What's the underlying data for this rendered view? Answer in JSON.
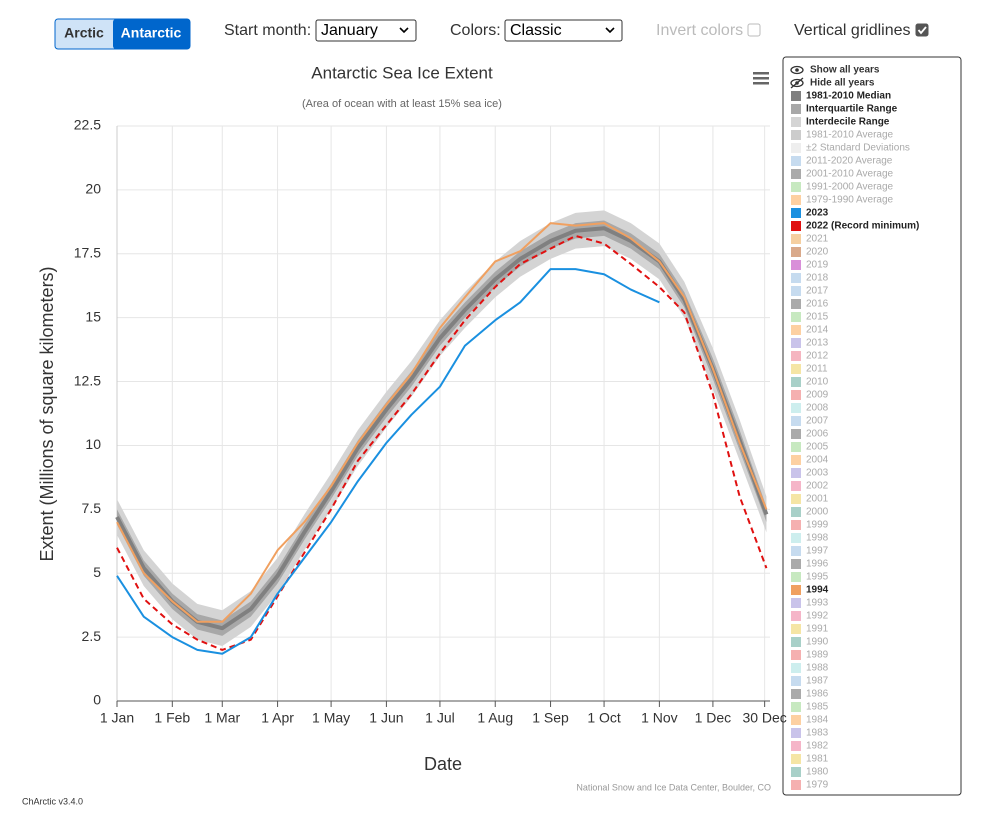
{
  "controls": {
    "arctic": "Arctic",
    "antarctic": "Antarctic",
    "start_month_label": "Start month:",
    "start_month": "January",
    "colors_label": "Colors:",
    "colors": "Classic",
    "invert_label": "Invert colors",
    "invert": false,
    "gridlines_label": "Vertical gridlines"
  },
  "chart_data": {
    "type": "line",
    "title": "Antarctic Sea Ice Extent",
    "subtitle": "(Area of ocean with at least 15% sea ice)",
    "x_label": "Date",
    "y_label": "Extent (Millions of square kilometers)",
    "source": "National Snow and Ice Data Center, Boulder, CO",
    "x": [
      0,
      15,
      31,
      45,
      59,
      75,
      90,
      105,
      120,
      135,
      151,
      165,
      181,
      195,
      212,
      226,
      243,
      257,
      273,
      288,
      304,
      318,
      334,
      349,
      364
    ],
    "xlim": [
      0,
      366
    ],
    "xticks": [
      {
        "value": 0,
        "label": "1 Jan"
      },
      {
        "value": 31,
        "label": "1 Feb"
      },
      {
        "value": 59,
        "label": "1 Mar"
      },
      {
        "value": 90,
        "label": "1 Apr"
      },
      {
        "value": 120,
        "label": "1 May"
      },
      {
        "value": 151,
        "label": "1 Jun"
      },
      {
        "value": 181,
        "label": "1 Jul"
      },
      {
        "value": 212,
        "label": "1 Aug"
      },
      {
        "value": 243,
        "label": "1 Sep"
      },
      {
        "value": 273,
        "label": "1 Oct"
      },
      {
        "value": 304,
        "label": "1 Nov"
      },
      {
        "value": 334,
        "label": "1 Dec"
      },
      {
        "value": 363,
        "label": "30 Dec"
      }
    ],
    "ylim": [
      0,
      22.5
    ],
    "yticks": [
      0,
      2.5,
      5,
      7.5,
      10,
      12.5,
      15,
      17.5,
      20,
      22.5
    ],
    "grid": true,
    "vertical_grid": true,
    "bands": [
      {
        "name": "Interdecile Range",
        "color": "#d4d4d4",
        "lower": [
          6.5,
          4.5,
          3.2,
          2.4,
          2.15,
          2.9,
          4.2,
          5.9,
          7.5,
          9.2,
          10.7,
          11.9,
          13.5,
          14.6,
          15.8,
          16.6,
          17.3,
          17.7,
          17.8,
          17.3,
          16.5,
          15.0,
          12.2,
          9.4,
          6.6
        ],
        "upper": [
          7.9,
          5.9,
          4.6,
          3.8,
          3.55,
          4.3,
          5.6,
          7.3,
          8.9,
          10.6,
          12.1,
          13.3,
          14.9,
          16.0,
          17.2,
          18.0,
          18.7,
          19.1,
          19.2,
          18.7,
          17.9,
          16.4,
          13.8,
          11.0,
          8.0
        ]
      },
      {
        "name": "Interquartile Range",
        "color": "#a8a8a8",
        "lower": [
          6.9,
          4.9,
          3.6,
          2.8,
          2.55,
          3.3,
          4.6,
          6.3,
          7.9,
          9.6,
          11.1,
          12.3,
          13.9,
          15.0,
          16.2,
          17.0,
          17.7,
          18.1,
          18.2,
          17.7,
          16.9,
          15.4,
          12.6,
          9.8,
          7.0
        ],
        "upper": [
          7.5,
          5.5,
          4.2,
          3.4,
          3.15,
          3.9,
          5.2,
          6.9,
          8.5,
          10.2,
          11.7,
          12.9,
          14.5,
          15.6,
          16.8,
          17.6,
          18.3,
          18.7,
          18.8,
          18.3,
          17.5,
          16.0,
          13.4,
          10.6,
          7.6
        ]
      }
    ],
    "series": [
      {
        "name": "1981-2010 Median",
        "color": "#808080",
        "width": 4,
        "dashed": false,
        "values": [
          7.2,
          5.2,
          3.9,
          3.1,
          2.85,
          3.6,
          4.9,
          6.6,
          8.2,
          9.9,
          11.4,
          12.6,
          14.2,
          15.3,
          16.5,
          17.3,
          18.0,
          18.4,
          18.5,
          18.0,
          17.2,
          15.7,
          13.0,
          10.2,
          7.3
        ]
      },
      {
        "name": "1994",
        "color": "#f0a060",
        "width": 2,
        "dashed": false,
        "values": [
          7.0,
          5.0,
          3.9,
          3.1,
          3.1,
          4.2,
          5.9,
          7.0,
          8.4,
          10.1,
          11.6,
          12.8,
          14.6,
          15.8,
          17.2,
          17.6,
          18.7,
          18.6,
          18.7,
          18.1,
          17.2,
          15.8,
          13.0,
          10.1,
          7.5
        ]
      },
      {
        "name": "2022 (Record minimum)",
        "color": "#e01010",
        "width": 2,
        "dashed": true,
        "values": [
          6.0,
          4.0,
          3.0,
          2.4,
          2.0,
          2.4,
          4.1,
          5.8,
          7.5,
          9.4,
          10.8,
          12.0,
          13.6,
          14.9,
          16.2,
          17.1,
          17.7,
          18.2,
          17.9,
          17.1,
          16.2,
          15.2,
          12.0,
          8.0,
          5.2
        ]
      },
      {
        "name": "2023",
        "color": "#1a90e0",
        "width": 2,
        "dashed": false,
        "values": [
          4.9,
          3.3,
          2.5,
          2.0,
          1.85,
          2.5,
          4.2,
          5.6,
          7.0,
          8.6,
          10.1,
          11.2,
          12.3,
          13.9,
          14.9,
          15.6,
          16.9,
          16.9,
          16.7,
          16.1,
          15.6,
          null,
          null,
          null,
          null
        ]
      }
    ],
    "legend_buttons": [
      "Show all years",
      "Hide all years"
    ],
    "legend": [
      {
        "name": "1981-2010 Median",
        "color": "#808080",
        "active": true
      },
      {
        "name": "Interquartile Range",
        "color": "#a8a8a8",
        "active": true
      },
      {
        "name": "Interdecile Range",
        "color": "#d4d4d4",
        "active": true
      },
      {
        "name": "1981-2010 Average",
        "color": "#cccccc",
        "active": false
      },
      {
        "name": "±2 Standard Deviations",
        "color": "#eeeeee",
        "active": false
      },
      {
        "name": "2011-2020 Average",
        "color": "#c6dbef",
        "active": false
      },
      {
        "name": "2001-2010 Average",
        "color": "#aaaaaa",
        "active": false
      },
      {
        "name": "1991-2000 Average",
        "color": "#c7e9c0",
        "active": false
      },
      {
        "name": "1979-1990 Average",
        "color": "#fdd0a2",
        "active": false
      },
      {
        "name": "2023",
        "color": "#1a90e0",
        "active": true
      },
      {
        "name": "2022 (Record minimum)",
        "color": "#e01010",
        "active": true
      },
      {
        "name": "2021",
        "color": "#f5cfa0",
        "active": false
      },
      {
        "name": "2020",
        "color": "#d9a98a",
        "active": false
      },
      {
        "name": "2019",
        "color": "#d98fd9",
        "active": false
      },
      {
        "name": "2018",
        "color": "#c6dbef",
        "active": false
      },
      {
        "name": "2017",
        "color": "#c6dbef",
        "active": false
      },
      {
        "name": "2016",
        "color": "#aaaaaa",
        "active": false
      },
      {
        "name": "2015",
        "color": "#c7e9c0",
        "active": false
      },
      {
        "name": "2014",
        "color": "#fdd0a2",
        "active": false
      },
      {
        "name": "2013",
        "color": "#c9c3ea",
        "active": false
      },
      {
        "name": "2012",
        "color": "#f5b5c0",
        "active": false
      },
      {
        "name": "2011",
        "color": "#f5e5a5",
        "active": false
      },
      {
        "name": "2010",
        "color": "#a8d0c8",
        "active": false
      },
      {
        "name": "2009",
        "color": "#f5b0b0",
        "active": false
      },
      {
        "name": "2008",
        "color": "#cdeeee",
        "active": false
      },
      {
        "name": "2007",
        "color": "#c6dbef",
        "active": false
      },
      {
        "name": "2006",
        "color": "#aaaaaa",
        "active": false
      },
      {
        "name": "2005",
        "color": "#c7e9c0",
        "active": false
      },
      {
        "name": "2004",
        "color": "#fdd0a2",
        "active": false
      },
      {
        "name": "2003",
        "color": "#c9c3ea",
        "active": false
      },
      {
        "name": "2002",
        "color": "#f5b5c8",
        "active": false
      },
      {
        "name": "2001",
        "color": "#f5e5a5",
        "active": false
      },
      {
        "name": "2000",
        "color": "#a8d0c8",
        "active": false
      },
      {
        "name": "1999",
        "color": "#f5b0b0",
        "active": false
      },
      {
        "name": "1998",
        "color": "#cdeeee",
        "active": false
      },
      {
        "name": "1997",
        "color": "#c6dbef",
        "active": false
      },
      {
        "name": "1996",
        "color": "#aaaaaa",
        "active": false
      },
      {
        "name": "1995",
        "color": "#c7e9c0",
        "active": false
      },
      {
        "name": "1994",
        "color": "#f0a060",
        "active": true
      },
      {
        "name": "1993",
        "color": "#c9c3ea",
        "active": false
      },
      {
        "name": "1992",
        "color": "#f5b5c8",
        "active": false
      },
      {
        "name": "1991",
        "color": "#f5e5a5",
        "active": false
      },
      {
        "name": "1990",
        "color": "#a8d0c8",
        "active": false
      },
      {
        "name": "1989",
        "color": "#f5b0b0",
        "active": false
      },
      {
        "name": "1988",
        "color": "#cdeeee",
        "active": false
      },
      {
        "name": "1987",
        "color": "#c6dbef",
        "active": false
      },
      {
        "name": "1986",
        "color": "#aaaaaa",
        "active": false
      },
      {
        "name": "1985",
        "color": "#c7e9c0",
        "active": false
      },
      {
        "name": "1984",
        "color": "#fdd0a2",
        "active": false
      },
      {
        "name": "1983",
        "color": "#c9c3ea",
        "active": false
      },
      {
        "name": "1982",
        "color": "#f5b5c8",
        "active": false
      },
      {
        "name": "1981",
        "color": "#f5e5a5",
        "active": false
      },
      {
        "name": "1980",
        "color": "#a8d0c8",
        "active": false
      },
      {
        "name": "1979",
        "color": "#f5b0b0",
        "active": false
      }
    ]
  },
  "version": "ChArctic v3.4.0"
}
